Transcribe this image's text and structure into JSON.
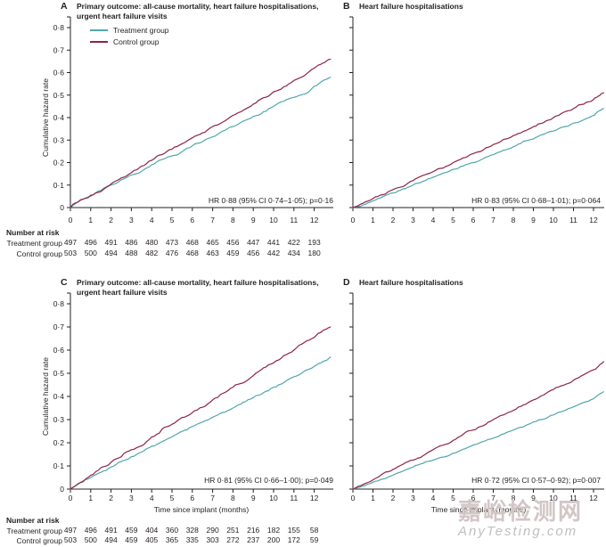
{
  "figure": {
    "colors": {
      "treatment": "#4FA7AD",
      "control": "#8E2349",
      "axis": "#231F20",
      "text": "#231F20",
      "watermark_cn": "#D2C6C6",
      "watermark_en": "#BFBFBF"
    },
    "legend": {
      "items": [
        {
          "key": "treatment",
          "label": "Treatment group"
        },
        {
          "key": "control",
          "label": "Control group"
        }
      ]
    },
    "y_axis_label": "Cumulative hazard rate",
    "x_axis_label": "Time since implant (months)",
    "number_at_risk_heading": "Number at risk",
    "risk_rows": [
      "Treatment group",
      "Control group"
    ]
  },
  "chart_data": [
    {
      "panel": "A",
      "type": "line",
      "title": "Primary outcome: all-cause mortality, heart failure hospitalisations, urgent heart failure visits",
      "annotation": "HR 0·88 (95% CI 0·74–1·05); p=0·16",
      "xlabel": "Time since implant (months)",
      "ylabel": "Cumulative hazard rate",
      "ylim": [
        0,
        0.8
      ],
      "yticks": [
        "0",
        "0·1",
        "0·2",
        "0·3",
        "0·4",
        "0·5",
        "0·6",
        "0·7",
        "0·8"
      ],
      "xticks": [
        "0",
        "1",
        "2",
        "3",
        "4",
        "5",
        "6",
        "7",
        "8",
        "9",
        "10",
        "11",
        "12"
      ],
      "x": [
        0,
        1,
        2,
        3,
        4,
        5,
        6,
        7,
        8,
        9,
        10,
        11,
        12,
        12.8
      ],
      "series": [
        {
          "name": "Treatment group",
          "values": [
            0,
            0.05,
            0.1,
            0.145,
            0.19,
            0.23,
            0.275,
            0.315,
            0.36,
            0.405,
            0.45,
            0.49,
            0.54,
            0.58
          ]
        },
        {
          "name": "Control group",
          "values": [
            0,
            0.055,
            0.105,
            0.155,
            0.21,
            0.26,
            0.31,
            0.36,
            0.41,
            0.46,
            0.515,
            0.565,
            0.62,
            0.66
          ]
        }
      ],
      "number_at_risk": {
        "months": [
          0,
          1,
          2,
          3,
          4,
          5,
          6,
          7,
          8,
          9,
          10,
          11,
          12
        ],
        "treatment": [
          497,
          496,
          491,
          486,
          480,
          473,
          468,
          465,
          456,
          447,
          441,
          422,
          193
        ],
        "control": [
          503,
          500,
          494,
          488,
          482,
          476,
          468,
          463,
          459,
          456,
          442,
          434,
          180
        ]
      }
    },
    {
      "panel": "B",
      "type": "line",
      "title": "Heart failure hospitalisations",
      "annotation": "HR 0·83 (95% CI 0·68–1·01); p=0·064",
      "xlabel": "Time since implant (months)",
      "ylabel": "Cumulative hazard rate",
      "ylim": [
        0,
        0.8
      ],
      "yticks": [
        "0",
        "0·1",
        "0·2",
        "0·3",
        "0·4",
        "0·5",
        "0·6",
        "0·7",
        "0·8"
      ],
      "xticks": [
        "0",
        "1",
        "2",
        "3",
        "4",
        "5",
        "6",
        "7",
        "8",
        "9",
        "10",
        "11",
        "12"
      ],
      "x": [
        0,
        1,
        2,
        3,
        4,
        5,
        6,
        7,
        8,
        9,
        10,
        11,
        12,
        12.5
      ],
      "series": [
        {
          "name": "Treatment group",
          "values": [
            0,
            0.03,
            0.065,
            0.1,
            0.135,
            0.17,
            0.2,
            0.235,
            0.27,
            0.305,
            0.34,
            0.375,
            0.41,
            0.44
          ]
        },
        {
          "name": "Control group",
          "values": [
            0,
            0.04,
            0.08,
            0.12,
            0.16,
            0.2,
            0.24,
            0.28,
            0.32,
            0.36,
            0.4,
            0.44,
            0.48,
            0.51
          ]
        }
      ]
    },
    {
      "panel": "C",
      "type": "line",
      "title": "Primary outcome: all-cause mortality, heart failure hospitalisations, urgent heart failure visits",
      "annotation": "HR 0·81 (95% CI 0·66–1·00); p=0·049",
      "xlabel": "Time since implant (months)",
      "ylabel": "Cumulative hazard rate",
      "ylim": [
        0,
        0.8
      ],
      "yticks": [
        "0",
        "0·1",
        "0·2",
        "0·3",
        "0·4",
        "0·5",
        "0·6",
        "0·7",
        "0·8"
      ],
      "xticks": [
        "0",
        "1",
        "2",
        "3",
        "4",
        "5",
        "6",
        "7",
        "8",
        "9",
        "10",
        "11",
        "12"
      ],
      "x": [
        0,
        1,
        2,
        3,
        4,
        5,
        6,
        7,
        8,
        9,
        10,
        11,
        12,
        12.8
      ],
      "series": [
        {
          "name": "Treatment group",
          "values": [
            0,
            0.05,
            0.095,
            0.14,
            0.185,
            0.225,
            0.27,
            0.31,
            0.35,
            0.395,
            0.44,
            0.485,
            0.53,
            0.57
          ]
        },
        {
          "name": "Control group",
          "values": [
            0,
            0.06,
            0.115,
            0.17,
            0.225,
            0.28,
            0.33,
            0.385,
            0.44,
            0.49,
            0.545,
            0.6,
            0.655,
            0.7
          ]
        }
      ],
      "number_at_risk": {
        "months": [
          0,
          1,
          2,
          3,
          4,
          5,
          6,
          7,
          8,
          9,
          10,
          11,
          12
        ],
        "treatment": [
          497,
          496,
          491,
          459,
          404,
          360,
          328,
          290,
          251,
          216,
          182,
          155,
          58
        ],
        "control": [
          503,
          500,
          494,
          459,
          405,
          365,
          335,
          303,
          272,
          237,
          200,
          172,
          59
        ]
      }
    },
    {
      "panel": "D",
      "type": "line",
      "title": "Heart failure hospitalisations",
      "annotation": "HR 0·72 (95% CI 0·57–0·92); p=0·007",
      "xlabel": "Time since implant (months)",
      "ylabel": "Cumulative hazard rate",
      "ylim": [
        0,
        0.8
      ],
      "yticks": [
        "0",
        "0·1",
        "0·2",
        "0·3",
        "0·4",
        "0·5",
        "0·6",
        "0·7",
        "0·8"
      ],
      "xticks": [
        "0",
        "1",
        "2",
        "3",
        "4",
        "5",
        "6",
        "7",
        "8",
        "9",
        "10",
        "11",
        "12"
      ],
      "x": [
        0,
        1,
        2,
        3,
        4,
        5,
        6,
        7,
        8,
        9,
        10,
        11,
        12,
        12.5
      ],
      "series": [
        {
          "name": "Treatment group",
          "values": [
            0,
            0.03,
            0.06,
            0.095,
            0.125,
            0.155,
            0.19,
            0.22,
            0.255,
            0.29,
            0.32,
            0.355,
            0.39,
            0.42
          ]
        },
        {
          "name": "Control group",
          "values": [
            0,
            0.04,
            0.085,
            0.125,
            0.17,
            0.21,
            0.255,
            0.3,
            0.34,
            0.385,
            0.43,
            0.47,
            0.515,
            0.55
          ]
        }
      ]
    }
  ],
  "watermark": {
    "line1": "嘉峪检测网",
    "line2": "AnyTesting.com"
  }
}
